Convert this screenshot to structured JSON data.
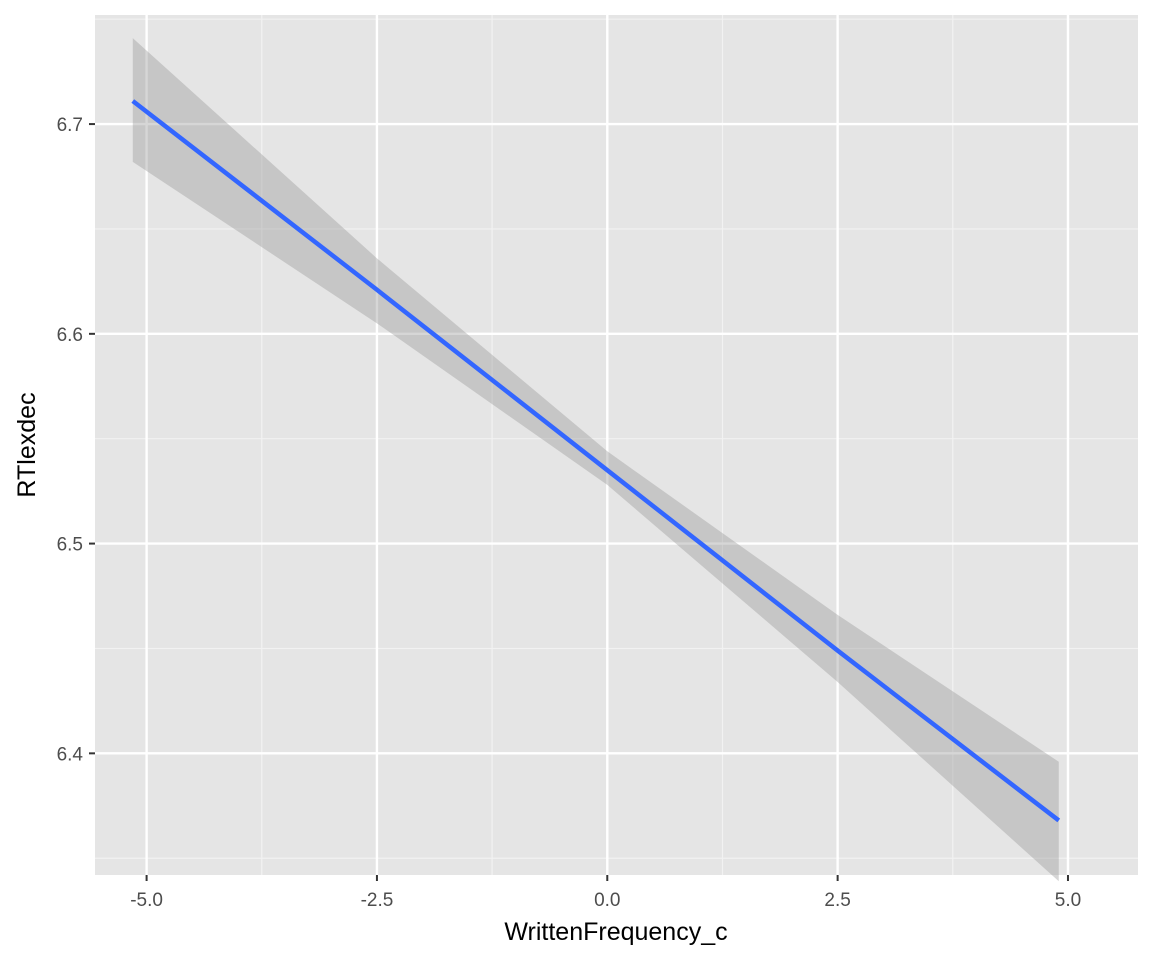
{
  "chart_data": {
    "type": "line",
    "title": "",
    "xlabel": "WrittenFrequency_c",
    "ylabel": "RTlexdec",
    "xlim": [
      -5.56,
      5.76
    ],
    "ylim": [
      6.342,
      6.752
    ],
    "x_ticks": [
      -5.0,
      -2.5,
      0.0,
      2.5,
      5.0
    ],
    "x_tick_labels": [
      "-5.0",
      "-2.5",
      "0.0",
      "2.5",
      "5.0"
    ],
    "y_ticks": [
      6.4,
      6.5,
      6.6,
      6.7
    ],
    "y_tick_labels": [
      "6.4",
      "6.5",
      "6.6",
      "6.7"
    ],
    "grid": true,
    "series": [
      {
        "color": "#3366ff",
        "x": [
          -5.15,
          -2.5,
          0.0,
          2.5,
          4.9
        ],
        "y": [
          6.711,
          6.621,
          6.535,
          6.449,
          6.368
        ]
      }
    ],
    "confidence_band": {
      "color": "#999999",
      "opacity": 0.4,
      "x": [
        -5.15,
        -2.5,
        0.0,
        2.5,
        4.9
      ],
      "lower": [
        6.682,
        6.605,
        6.528,
        6.434,
        6.339
      ],
      "upper": [
        6.741,
        6.636,
        6.544,
        6.466,
        6.396
      ]
    }
  }
}
